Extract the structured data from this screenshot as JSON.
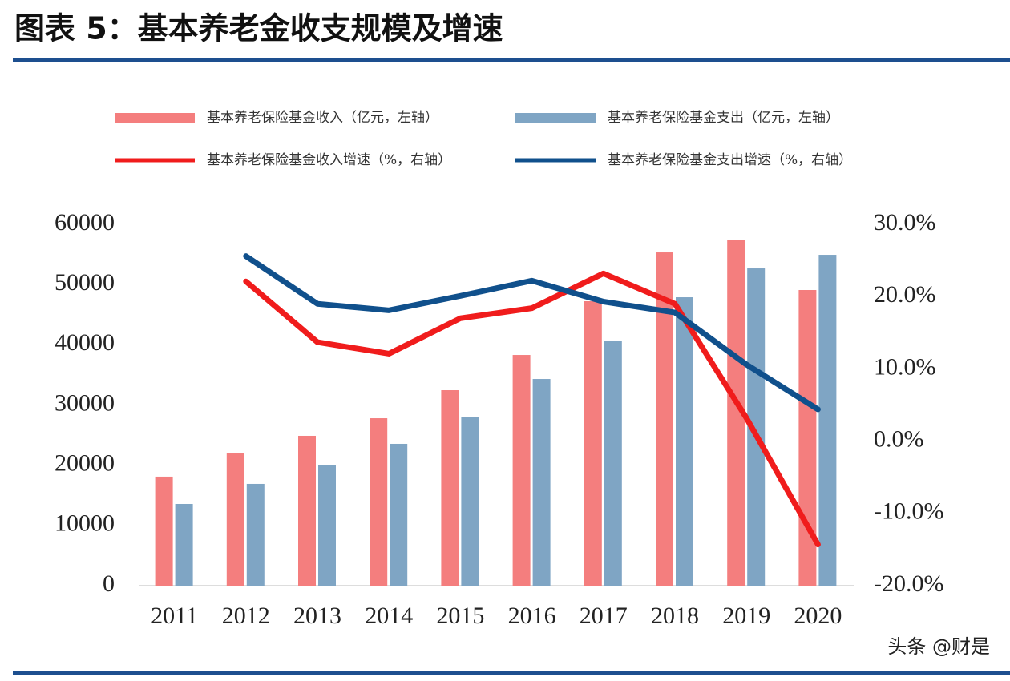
{
  "chart_data": {
    "type": "bar-line",
    "title": "图表 5：基本养老金收支规模及增速",
    "categories": [
      "2011",
      "2012",
      "2013",
      "2014",
      "2015",
      "2016",
      "2017",
      "2018",
      "2019",
      "2020"
    ],
    "series": [
      {
        "name": "基本养老保险基金收入（亿元，左轴）",
        "type": "bar",
        "color": "#f47e7e",
        "values": [
          18100,
          21950,
          24880,
          27800,
          32460,
          38310,
          47230,
          55340,
          57470,
          49090
        ]
      },
      {
        "name": "基本养老保险基金支出（亿元，左轴）",
        "type": "bar",
        "color": "#7fa5c4",
        "values": [
          13570,
          16900,
          19960,
          23550,
          28070,
          34320,
          40710,
          47890,
          52680,
          54940
        ]
      },
      {
        "name": "基本养老保险基金收入增速（%，右轴）",
        "type": "line",
        "axis": "y2",
        "color": "#f01c1c",
        "values": [
          null,
          22.1,
          13.7,
          12.1,
          17.0,
          18.4,
          23.2,
          19.0,
          3.2,
          -14.3
        ]
      },
      {
        "name": "基本养老保险基金支出增速（%，右轴）",
        "type": "line",
        "axis": "y2",
        "color": "#10508c",
        "values": [
          null,
          25.6,
          19.0,
          18.1,
          20.1,
          22.2,
          19.3,
          17.8,
          10.6,
          4.4
        ]
      }
    ],
    "ylim": [
      0,
      60000
    ],
    "yticks": [
      0,
      10000,
      20000,
      30000,
      40000,
      50000,
      60000
    ],
    "y2lim": [
      -20,
      30
    ],
    "y2ticks": [
      {
        "value": -20,
        "label": "-20.0%"
      },
      {
        "value": -10,
        "label": "-10.0%"
      },
      {
        "value": 0,
        "label": "0.0%"
      },
      {
        "value": 10,
        "label": "10.0%"
      },
      {
        "value": 20,
        "label": "20.0%"
      },
      {
        "value": 30,
        "label": "30.0%"
      }
    ],
    "grid": false,
    "annotation": "头条 @财是"
  }
}
